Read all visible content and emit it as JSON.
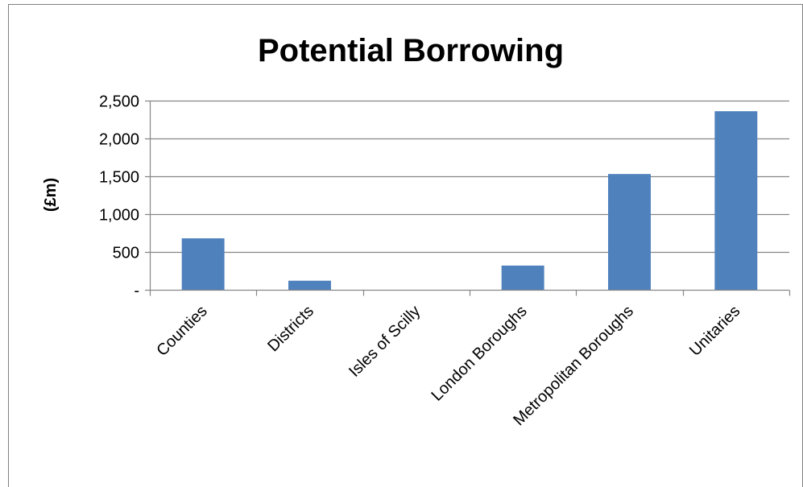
{
  "chart_data": {
    "type": "bar",
    "title": "Potential Borrowing",
    "xlabel": "",
    "ylabel": "(£m)",
    "categories": [
      "Counties",
      "Districts",
      "Isles of Scilly",
      "London Boroughs",
      "Metropolitan Boroughs",
      "Unitaries"
    ],
    "values": [
      680,
      120,
      0,
      320,
      1530,
      2360
    ],
    "ylim": [
      0,
      2500
    ],
    "yticks": [
      0,
      500,
      1000,
      1500,
      2000,
      2500
    ],
    "ytick_labels": [
      "-",
      "500",
      "1,000",
      "1,500",
      "2,000",
      "2,500"
    ],
    "grid": true,
    "legend": "none",
    "bar_color": "#4f81bd",
    "grid_color": "#868686"
  }
}
